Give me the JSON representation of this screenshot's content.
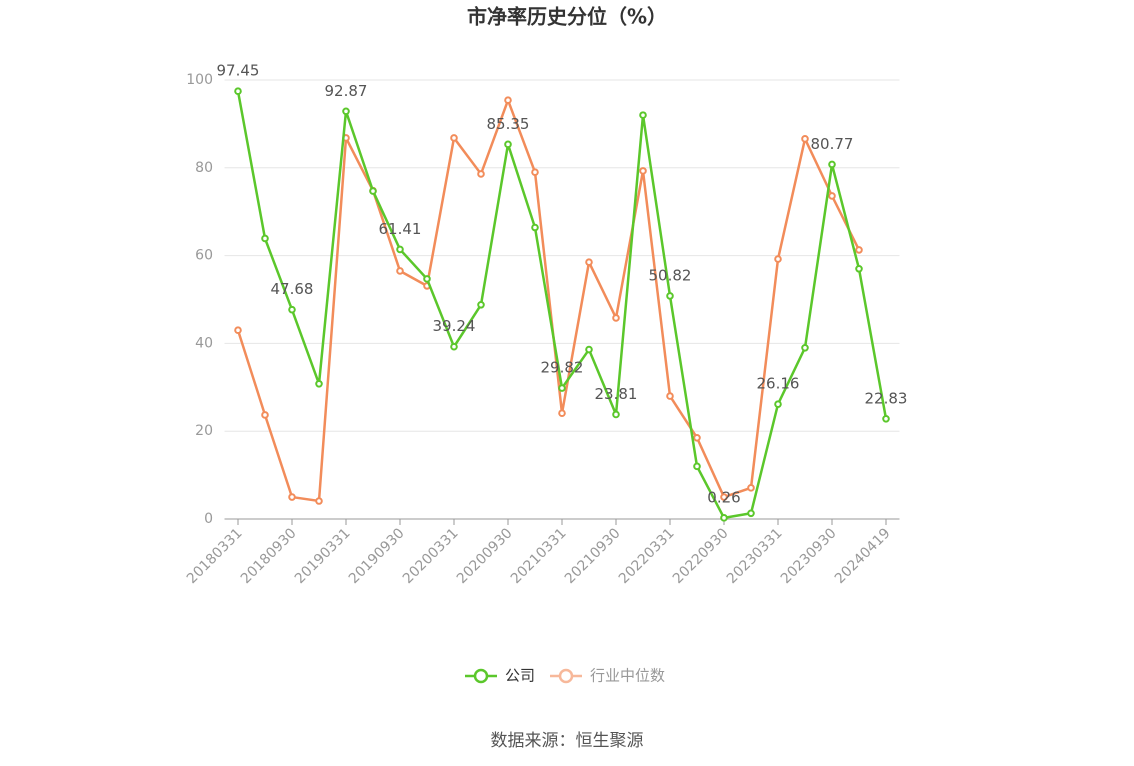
{
  "chart_data": {
    "type": "line",
    "title": "市净率历史分位（%）",
    "source": "数据来源：恒生聚源",
    "categories": [
      "20180331",
      null,
      "20180930",
      null,
      "20190331",
      null,
      "20190930",
      null,
      "20200331",
      null,
      "20200930",
      null,
      "20210331",
      null,
      "20210930",
      null,
      "20220331",
      null,
      "20220930",
      null,
      "20230331",
      null,
      "20230930",
      null,
      "20240419"
    ],
    "series": [
      {
        "name": "公司",
        "color": "#5bc72b",
        "values": [
          97.45,
          63.9,
          47.68,
          30.8,
          92.87,
          74.7,
          61.41,
          54.7,
          39.24,
          48.8,
          85.35,
          66.4,
          29.82,
          38.6,
          23.81,
          92.0,
          50.82,
          12.0,
          0.26,
          1.3,
          26.16,
          39.0,
          80.77,
          57.0,
          22.83
        ],
        "value_labels": [
          "97.45",
          null,
          "47.68",
          null,
          "92.87",
          null,
          "61.41",
          null,
          "39.24",
          null,
          "85.35",
          null,
          "29.82",
          null,
          "23.81",
          null,
          "50.82",
          null,
          "0.26",
          null,
          "26.16",
          null,
          "80.77",
          null,
          "22.83"
        ]
      },
      {
        "name": "行业中位数",
        "color": "#f28c5a",
        "values": [
          43.0,
          23.7,
          5.0,
          4.1,
          86.8,
          74.8,
          56.5,
          53.1,
          86.8,
          78.6,
          95.4,
          79.0,
          24.1,
          58.5,
          45.8,
          79.3,
          28.0,
          18.5,
          5.0,
          7.1,
          59.2,
          86.6,
          73.6,
          61.3,
          null
        ]
      }
    ],
    "ylim": [
      0,
      100
    ],
    "yticks": [
      0,
      20,
      40,
      60,
      80,
      100
    ],
    "grid": true,
    "legend": "bottom"
  }
}
